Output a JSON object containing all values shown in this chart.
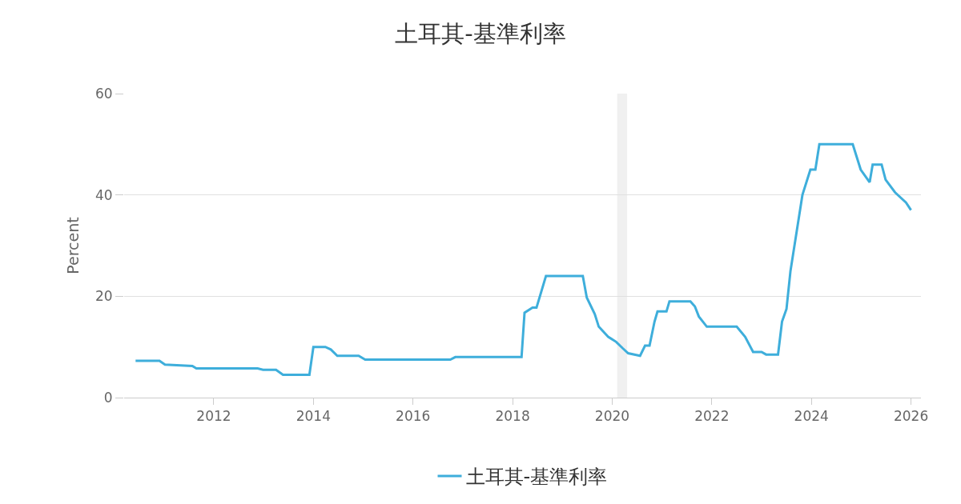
{
  "chart_data": {
    "type": "line",
    "title": "土耳其-基準利率",
    "ylabel": "Percent",
    "x": [
      2010.43,
      2010.91,
      2011.02,
      2011.57,
      2011.65,
      2012.88,
      2012.99,
      2013.25,
      2013.39,
      2013.92,
      2014.0,
      2014.24,
      2014.35,
      2014.48,
      2014.91,
      2015.04,
      2016.75,
      2016.85,
      2018.18,
      2018.24,
      2018.4,
      2018.48,
      2018.67,
      2019.41,
      2019.49,
      2019.65,
      2019.73,
      2019.92,
      2020.08,
      2020.21,
      2020.32,
      2020.56,
      2020.66,
      2020.75,
      2020.85,
      2020.91,
      2021.09,
      2021.15,
      2021.57,
      2021.66,
      2021.74,
      2021.9,
      2022.5,
      2022.67,
      2022.83,
      2023.0,
      2023.09,
      2023.33,
      2023.41,
      2023.5,
      2023.58,
      2023.82,
      2023.98,
      2024.08,
      2024.16,
      2024.83,
      2024.99,
      2025.17,
      2025.23,
      2025.41,
      2025.49,
      2025.68,
      2025.9,
      2026.0
    ],
    "series": [
      {
        "name": "土耳其-基準利率",
        "color": "#3eaedb",
        "values": [
          7.25,
          7.25,
          6.5,
          6.25,
          5.75,
          5.75,
          5.5,
          5.5,
          4.5,
          4.5,
          10,
          10,
          9.5,
          8.25,
          8.25,
          7.5,
          7.5,
          8.0,
          8.0,
          16.75,
          17.75,
          17.75,
          24,
          24,
          19.75,
          16.5,
          14,
          12,
          11,
          9.75,
          8.75,
          8.25,
          10.25,
          10.25,
          15,
          17,
          17,
          19,
          19,
          18,
          16,
          14,
          14,
          12,
          9,
          9,
          8.5,
          8.5,
          15,
          17.5,
          25,
          40,
          45,
          45,
          50,
          50,
          45,
          42.5,
          46,
          46,
          43,
          40.5,
          38.5,
          37
        ]
      }
    ],
    "xlim": [
      2010.2,
      2026.2
    ],
    "xticks": [
      2012,
      2014,
      2016,
      2018,
      2020,
      2022,
      2024,
      2026
    ],
    "ylim": [
      0,
      60
    ],
    "yticks": [
      0,
      20,
      40,
      60
    ],
    "bands": [
      {
        "axis": "x",
        "from": 2020.1,
        "to": 2020.3,
        "color": "#f0f0f0"
      }
    ],
    "grid": "y",
    "legend": "bottom",
    "marker": "none",
    "line_style": "solid"
  }
}
